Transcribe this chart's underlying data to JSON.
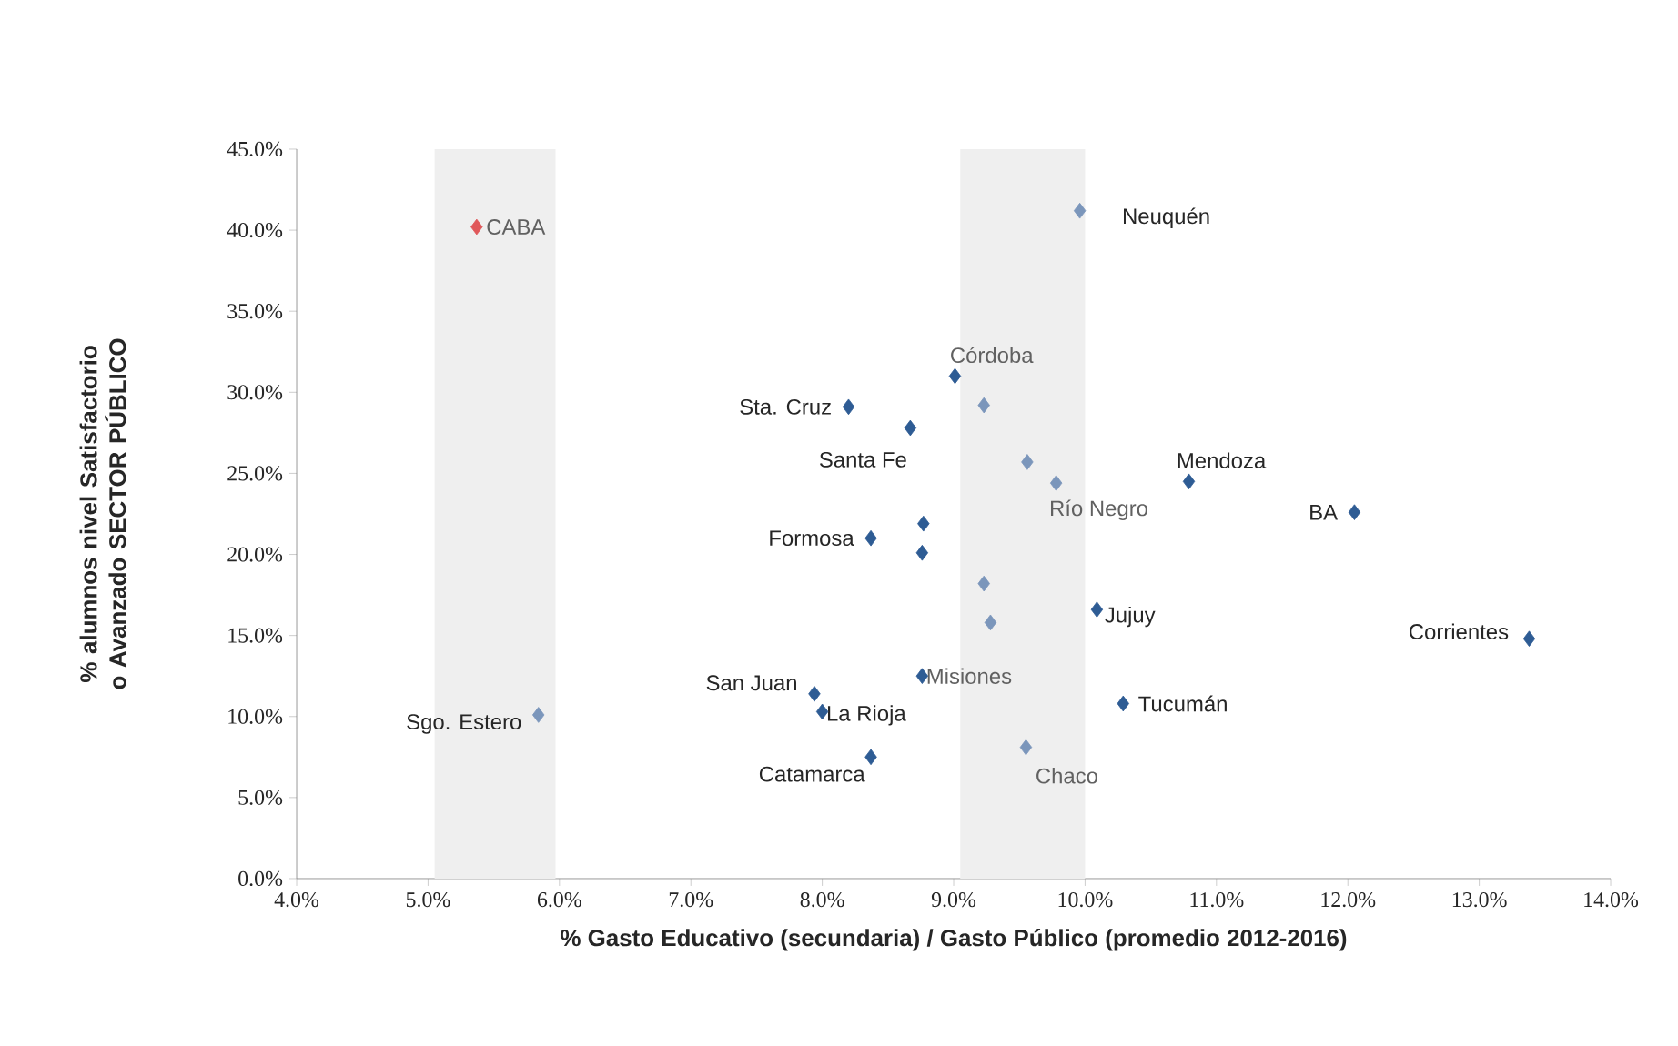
{
  "chart_data": {
    "type": "scatter",
    "xlabel": "% Gasto Educativo (secundaria)  / Gasto Público (promedio 2012-2016)",
    "ylabel": "% alumnos nivel Satisfactorio o Avanzado SECTOR PÚBLICO",
    "xlim": [
      4,
      14
    ],
    "xticks": [
      {
        "value": 4,
        "label": "4.0%"
      },
      {
        "value": 5,
        "label": "5.0%"
      },
      {
        "value": 6,
        "label": "6.0%"
      },
      {
        "value": 7,
        "label": "7.0%"
      },
      {
        "value": 8,
        "label": "8.0%"
      },
      {
        "value": 9,
        "label": "9.0%"
      },
      {
        "value": 10,
        "label": "10.0%"
      },
      {
        "value": 11,
        "label": "11.0%"
      },
      {
        "value": 12,
        "label": "12.0%"
      },
      {
        "value": 13,
        "label": "13.0%"
      },
      {
        "value": 14,
        "label": "14.0%"
      }
    ],
    "ylim": [
      0,
      45
    ],
    "yticks": [
      {
        "value": 0,
        "label": "0.0%"
      },
      {
        "value": 5,
        "label": "5.0%"
      },
      {
        "value": 10,
        "label": "10.0%"
      },
      {
        "value": 15,
        "label": "15.0%"
      },
      {
        "value": 20,
        "label": "20.0%"
      },
      {
        "value": 25,
        "label": "25.0%"
      },
      {
        "value": 30,
        "label": "30.0%"
      },
      {
        "value": 35,
        "label": "35.0%"
      },
      {
        "value": 40,
        "label": "40.0%"
      },
      {
        "value": 45,
        "label": "45.0%"
      }
    ],
    "marker": "diamond",
    "bands": [
      {
        "axis": "x",
        "from": 5.05,
        "to": 5.97,
        "color": "#efefef"
      },
      {
        "axis": "x",
        "from": 9.05,
        "to": 10.0,
        "color": "#efefef"
      }
    ],
    "series": [
      {
        "color": "#e0585a",
        "x": [
          5.37
        ],
        "values": [
          40.2
        ]
      },
      {
        "color": "#2e5c94",
        "x": [
          9.01,
          8.2,
          8.67,
          10.79,
          12.05,
          8.37,
          8.77,
          8.76,
          10.09,
          13.38,
          8.76,
          7.94,
          8.0,
          10.29,
          8.37
        ],
        "values": [
          31.0,
          29.1,
          27.8,
          24.5,
          22.6,
          21.0,
          21.9,
          20.1,
          16.6,
          14.8,
          12.5,
          11.4,
          10.3,
          10.8,
          7.5
        ]
      },
      {
        "color": "#7b96bb",
        "x": [
          9.96,
          9.23,
          9.56,
          9.78,
          9.23,
          9.28,
          5.84,
          9.55
        ],
        "values": [
          41.2,
          29.2,
          25.7,
          24.4,
          18.2,
          15.8,
          10.1,
          8.1
        ]
      }
    ],
    "annotations": [
      {
        "text": "CABA",
        "x": 5.37,
        "y": 40.2
      },
      {
        "text": "Neuquén",
        "x": 9.96,
        "y": 41.2
      },
      {
        "text": "Córdoba",
        "x": 9.01,
        "y": 31.0
      },
      {
        "text": "Sta. Cruz",
        "x": 8.2,
        "y": 29.1
      },
      {
        "text": "Santa Fe",
        "x": 8.67,
        "y": 27.8
      },
      {
        "text": "Mendoza",
        "x": 10.79,
        "y": 24.5
      },
      {
        "text": "Río Negro",
        "x": 9.78,
        "y": 24.4
      },
      {
        "text": "BA",
        "x": 12.05,
        "y": 22.6
      },
      {
        "text": "Formosa",
        "x": 8.37,
        "y": 21.0
      },
      {
        "text": "Jujuy",
        "x": 10.09,
        "y": 16.6
      },
      {
        "text": "Corrientes",
        "x": 13.38,
        "y": 14.8
      },
      {
        "text": "Misiones",
        "x": 8.76,
        "y": 12.5
      },
      {
        "text": "San Juan",
        "x": 7.94,
        "y": 11.4
      },
      {
        "text": "La Rioja",
        "x": 8.0,
        "y": 10.3
      },
      {
        "text": "Tucumán",
        "x": 10.29,
        "y": 10.8
      },
      {
        "text": "Sgo. Estero",
        "x": 5.84,
        "y": 10.1
      },
      {
        "text": "Catamarca",
        "x": 8.37,
        "y": 7.5
      },
      {
        "text": "Chaco",
        "x": 9.55,
        "y": 8.1
      }
    ]
  }
}
